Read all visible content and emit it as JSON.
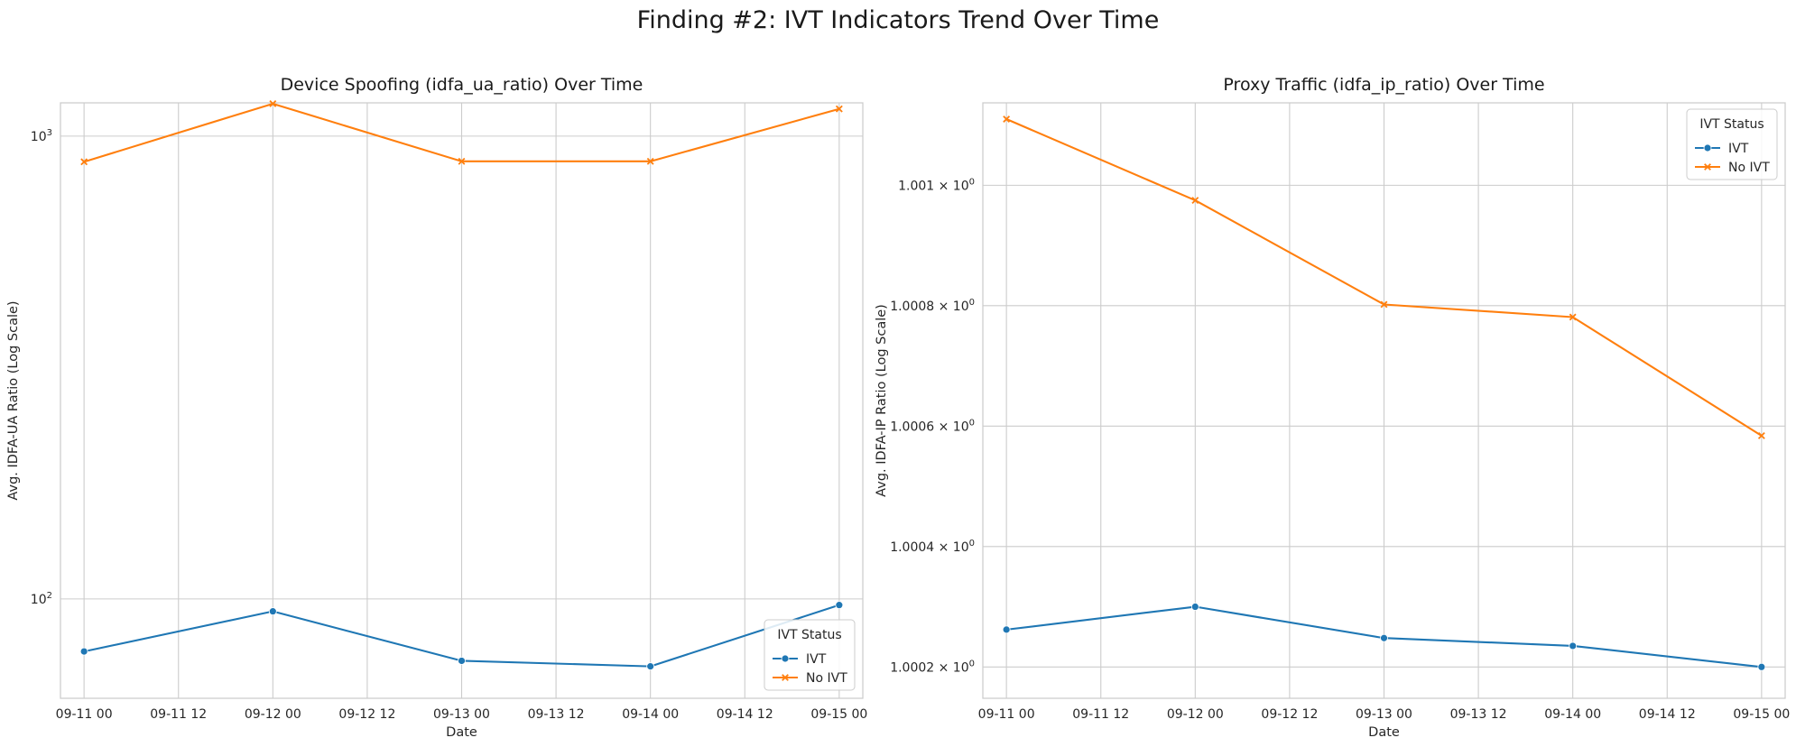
{
  "figure": {
    "title": "Finding #2: IVT Indicators Trend Over Time"
  },
  "colors": {
    "IVT": "#1f77b4",
    "No IVT": "#ff7f0e",
    "grid": "#cccccc"
  },
  "chart_data": [
    {
      "type": "line",
      "title": "Device Spoofing (idfa_ua_ratio) Over Time",
      "xlabel": "Date",
      "ylabel": "Avg. IDFA-UA Ratio (Log Scale)",
      "yscale": "log",
      "ylim": [
        61,
        1180
      ],
      "xlim": [
        "2023-09-10T21:00",
        "2023-09-15T03:00"
      ],
      "xticks": [
        "09-11 00",
        "09-11 12",
        "09-12 00",
        "09-12 12",
        "09-13 00",
        "09-13 12",
        "09-14 00",
        "09-14 12",
        "09-15 00"
      ],
      "yticks": [
        {
          "value": 100,
          "label": "10^2"
        },
        {
          "value": 1000,
          "label": "10^3"
        }
      ],
      "grid": true,
      "legend": {
        "title": "IVT Status",
        "placement": "lower-right"
      },
      "x": [
        "2023-09-11",
        "2023-09-12",
        "2023-09-13",
        "2023-09-14",
        "2023-09-15"
      ],
      "series": [
        {
          "name": "IVT",
          "marker": "circle",
          "values": [
            77,
            94,
            73.5,
            71.5,
            97
          ]
        },
        {
          "name": "No IVT",
          "marker": "x",
          "values": [
            880,
            1175,
            882,
            882,
            1145
          ]
        }
      ]
    },
    {
      "type": "line",
      "title": "Proxy Traffic (idfa_ip_ratio) Over Time",
      "xlabel": "Date",
      "ylabel": "Avg. IDFA-IP Ratio (Log Scale)",
      "yscale": "log",
      "ylim": [
        1.000148,
        1.001137
      ],
      "xlim": [
        "2023-09-10T21:00",
        "2023-09-15T03:00"
      ],
      "xticks": [
        "09-11 00",
        "09-11 12",
        "09-12 00",
        "09-12 12",
        "09-13 00",
        "09-13 12",
        "09-14 00",
        "09-14 12",
        "09-15 00"
      ],
      "yticks": [
        {
          "value": 1.0002,
          "label": "1.0002 × 10^0"
        },
        {
          "value": 1.0004,
          "label": "1.0004 × 10^0"
        },
        {
          "value": 1.0006,
          "label": "1.0006 × 10^0"
        },
        {
          "value": 1.0008,
          "label": "1.0008 × 10^0"
        },
        {
          "value": 1.001,
          "label": "1.001 × 10^0"
        }
      ],
      "grid": true,
      "legend": {
        "title": "IVT Status",
        "placement": "upper-right"
      },
      "x": [
        "2023-09-11",
        "2023-09-12",
        "2023-09-13",
        "2023-09-14",
        "2023-09-15"
      ],
      "series": [
        {
          "name": "IVT",
          "marker": "circle",
          "values": [
            1.000262,
            1.0003,
            1.000248,
            1.000235,
            1.0002
          ]
        },
        {
          "name": "No IVT",
          "marker": "x",
          "values": [
            1.00111,
            1.000975,
            1.000802,
            1.000781,
            1.000584
          ]
        }
      ]
    }
  ]
}
